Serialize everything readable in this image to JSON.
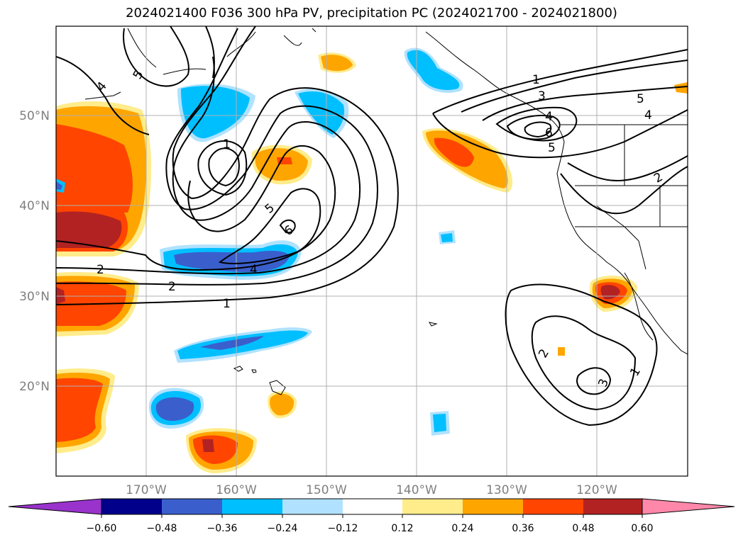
{
  "title": "2024021400 F036 300 hPa PV, precipitation PC (2024021700 - 2024021800)",
  "lat_labels": [
    "50°N",
    "40°N",
    "30°N",
    "20°N"
  ],
  "lon_labels": [
    "170°W",
    "160°W",
    "150°W",
    "140°W",
    "130°W",
    "120°W"
  ],
  "contour_labels": [
    "5",
    "4",
    "1",
    "5",
    "6",
    "4",
    "2",
    "2",
    "1",
    "1",
    "3",
    "4",
    "6",
    "5",
    "5",
    "4",
    "2",
    "2",
    "3",
    "1"
  ],
  "colorbar": {
    "ticks": [
      "−0.60",
      "−0.48",
      "−0.36",
      "−0.24",
      "−0.12",
      "0.12",
      "0.24",
      "0.36",
      "0.48",
      "0.60"
    ],
    "colors": [
      "#9933cc",
      "#00008b",
      "#3a5fcd",
      "#00bfff",
      "#b0e2ff",
      "#ffffff",
      "#ffec8b",
      "#ffa500",
      "#ff4500",
      "#b22222",
      "#ff88aa"
    ]
  },
  "colors": {
    "neg_purple": "#9933cc",
    "neg_navy": "#00008b",
    "neg_blue": "#3a5fcd",
    "neg_cyan": "#00bfff",
    "neg_light": "#b0e2ff",
    "pos_yellow": "#ffec8b",
    "pos_orange": "#ffa500",
    "pos_red": "#ff4500",
    "pos_dark": "#b22222",
    "pos_pink": "#ff88aa"
  }
}
